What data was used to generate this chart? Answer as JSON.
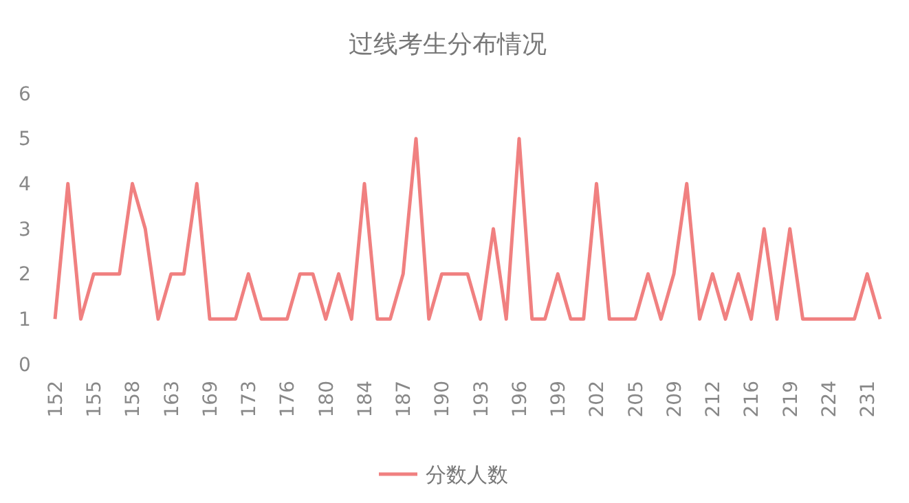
{
  "chart_data": {
    "type": "line",
    "title": "过线考生分布情况",
    "categories": [
      "152",
      null,
      null,
      "155",
      null,
      null,
      "158",
      null,
      null,
      "163",
      null,
      null,
      "169",
      null,
      null,
      "173",
      null,
      null,
      "176",
      null,
      null,
      "180",
      null,
      null,
      "184",
      null,
      null,
      "187",
      null,
      null,
      "190",
      null,
      null,
      "193",
      null,
      null,
      "196",
      null,
      null,
      "199",
      null,
      null,
      "202",
      null,
      null,
      "205",
      null,
      null,
      "209",
      null,
      null,
      "212",
      null,
      null,
      "216",
      null,
      null,
      "219",
      null,
      null,
      "224",
      null,
      null,
      "231",
      null
    ],
    "series": [
      {
        "name": "分数人数",
        "color": "#f08080",
        "values": [
          1,
          4,
          1,
          2,
          2,
          2,
          4,
          3,
          1,
          2,
          2,
          4,
          1,
          1,
          1,
          2,
          1,
          1,
          1,
          2,
          2,
          1,
          2,
          1,
          4,
          1,
          1,
          2,
          5,
          1,
          2,
          2,
          2,
          1,
          3,
          1,
          5,
          1,
          1,
          2,
          1,
          1,
          4,
          1,
          1,
          1,
          2,
          1,
          2,
          4,
          1,
          2,
          1,
          2,
          1,
          3,
          1,
          3,
          1,
          1,
          1,
          1,
          1,
          2,
          1
        ]
      }
    ],
    "ylim": [
      0,
      6
    ],
    "yticks": [
      0,
      1,
      2,
      3,
      4,
      5,
      6
    ],
    "grid": false,
    "legend": "bottom",
    "marker": "none",
    "line_style": "solid"
  }
}
